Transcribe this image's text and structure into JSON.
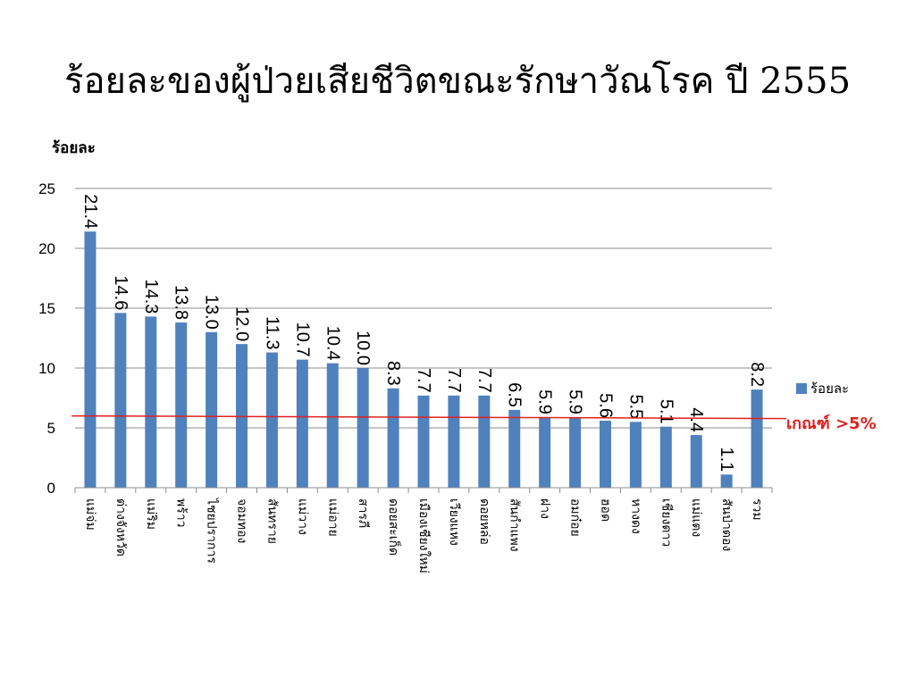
{
  "chart_data": {
    "type": "bar",
    "title": "ร้อยละของผู้ป่วยเสียชีวิตขณะรักษาวัณโรค ปี 2555",
    "ylabel": "ร้อยละ",
    "xlabel": "",
    "ylim": [
      0,
      25
    ],
    "yticks": [
      0,
      5,
      10,
      15,
      20,
      25
    ],
    "grid": true,
    "legend_position": "right",
    "bar_color": "#4F81BD",
    "threshold_color": "#E02020",
    "categories": [
      "แม่จ่ม",
      "ต่างจังหวัด",
      "แม่ริม",
      "พร้าว",
      "ไชยปราการ",
      "จอมทอง",
      "สันทราย",
      "แม่วาง",
      "แม่อาย",
      "สารภี",
      "ดอยสะเก็ด",
      "เมืองเชียงใหม่",
      "เวียงแหง",
      "ดอยหล่อ",
      "สันกำแพง",
      "ฝาง",
      "อมก๋อย",
      "ฮอด",
      "หางดง",
      "เชียงดาว",
      "แม่แตง",
      "สันป่าตอง",
      "รวม"
    ],
    "series": [
      {
        "name": "ร้อยละ",
        "values": [
          21.4,
          14.6,
          14.3,
          13.8,
          13.0,
          12.0,
          11.3,
          10.7,
          10.4,
          10.0,
          8.3,
          7.7,
          7.7,
          7.7,
          6.5,
          5.9,
          5.9,
          5.6,
          5.5,
          5.1,
          4.4,
          1.1,
          8.2
        ]
      }
    ],
    "data_labels": [
      "21.4",
      "14.6",
      "14.3",
      "13.8",
      "13.0",
      "12.0",
      "11.3",
      "10.7",
      "10.4",
      "10.0",
      "8.3",
      "7.7",
      "7.7",
      "7.7",
      "6.5",
      "5.9",
      "5.9",
      "5.6",
      "5.5",
      "5.1",
      "4.4",
      "1.1",
      "8.2"
    ],
    "threshold": {
      "value": 6,
      "label": "เกณฑ์ >5%"
    }
  }
}
